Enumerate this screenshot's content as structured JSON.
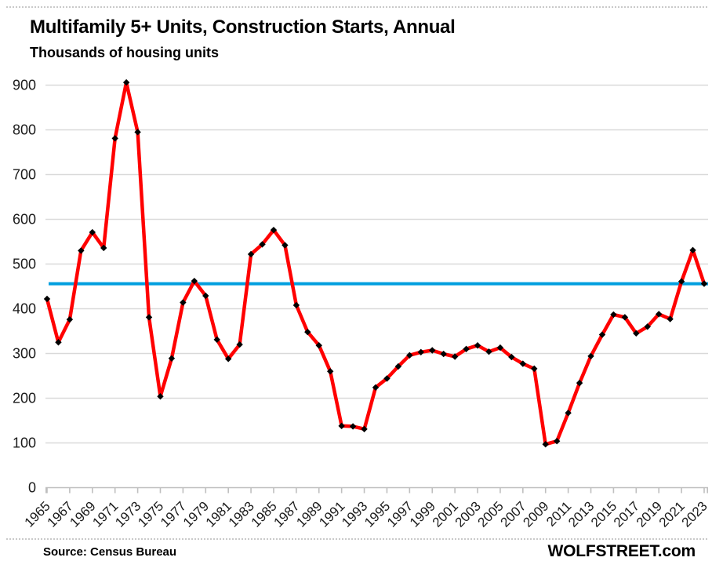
{
  "header": {
    "title": "Multifamily 5+ Units, Construction Starts, Annual",
    "subtitle": "Thousands of housing units"
  },
  "footer": {
    "source": "Source: Census Bureau",
    "brand": "WOLFSTREET.com"
  },
  "colors": {
    "series_line": "#FF0000",
    "marker": "#000000",
    "reference_line": "#009FDF",
    "gridline": "#D9D9D9",
    "axis_line": "#BFBFBF",
    "label_text": "#1a1a1a"
  },
  "chart_data": {
    "type": "line",
    "title": "Multifamily 5+ Units, Construction Starts, Annual",
    "ylabel": "Thousands of housing units",
    "xlabel": "",
    "grid": "horizontal",
    "legend": "none",
    "ylim": [
      0,
      900
    ],
    "ytick_step": 100,
    "xtick_label_step": 2,
    "series_name": "Multifamily 5+ units construction starts (thousands)",
    "marker_shape": "diamond",
    "reference_line": {
      "value": 456,
      "note": "horizontal blue line at latest (2023) level"
    },
    "x": [
      1965,
      1966,
      1967,
      1968,
      1969,
      1970,
      1971,
      1972,
      1973,
      1974,
      1975,
      1976,
      1977,
      1978,
      1979,
      1980,
      1981,
      1982,
      1983,
      1984,
      1985,
      1986,
      1987,
      1988,
      1989,
      1990,
      1991,
      1992,
      1993,
      1994,
      1995,
      1996,
      1997,
      1998,
      1999,
      2000,
      2001,
      2002,
      2003,
      2004,
      2005,
      2006,
      2007,
      2008,
      2009,
      2010,
      2011,
      2012,
      2013,
      2014,
      2015,
      2016,
      2017,
      2018,
      2019,
      2020,
      2021,
      2022,
      2023
    ],
    "values": [
      422,
      325,
      376,
      530,
      571,
      536,
      781,
      906,
      795,
      381,
      204,
      289,
      414,
      462,
      429,
      331,
      288,
      320,
      522,
      544,
      576,
      542,
      408,
      348,
      318,
      260,
      138,
      137,
      131,
      224,
      244,
      271,
      296,
      303,
      307,
      299,
      293,
      310,
      318,
      304,
      313,
      292,
      277,
      266,
      97,
      104,
      167,
      234,
      294,
      342,
      387,
      381,
      345,
      360,
      388,
      377,
      461,
      531,
      456
    ]
  }
}
